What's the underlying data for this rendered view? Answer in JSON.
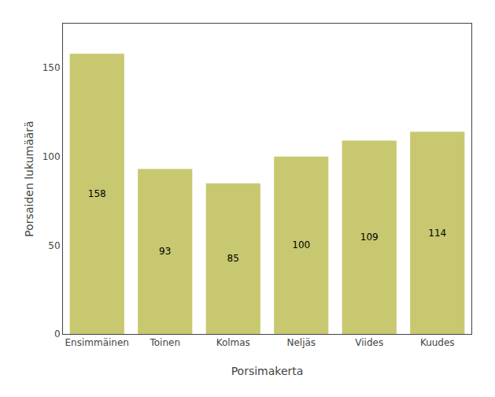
{
  "chart_data": {
    "type": "bar",
    "categories": [
      "Ensimmäinen",
      "Toinen",
      "Kolmas",
      "Neljäs",
      "Viides",
      "Kuudes"
    ],
    "values": [
      158,
      93,
      85,
      100,
      109,
      114
    ],
    "color": "#C8C870",
    "xlabel": "Porsimakerta",
    "ylabel": "Porsaiden lukumäärä",
    "ylim": [
      0,
      175
    ],
    "yticks": [
      0,
      50,
      100,
      150
    ],
    "grid": false,
    "data_labels": true
  }
}
